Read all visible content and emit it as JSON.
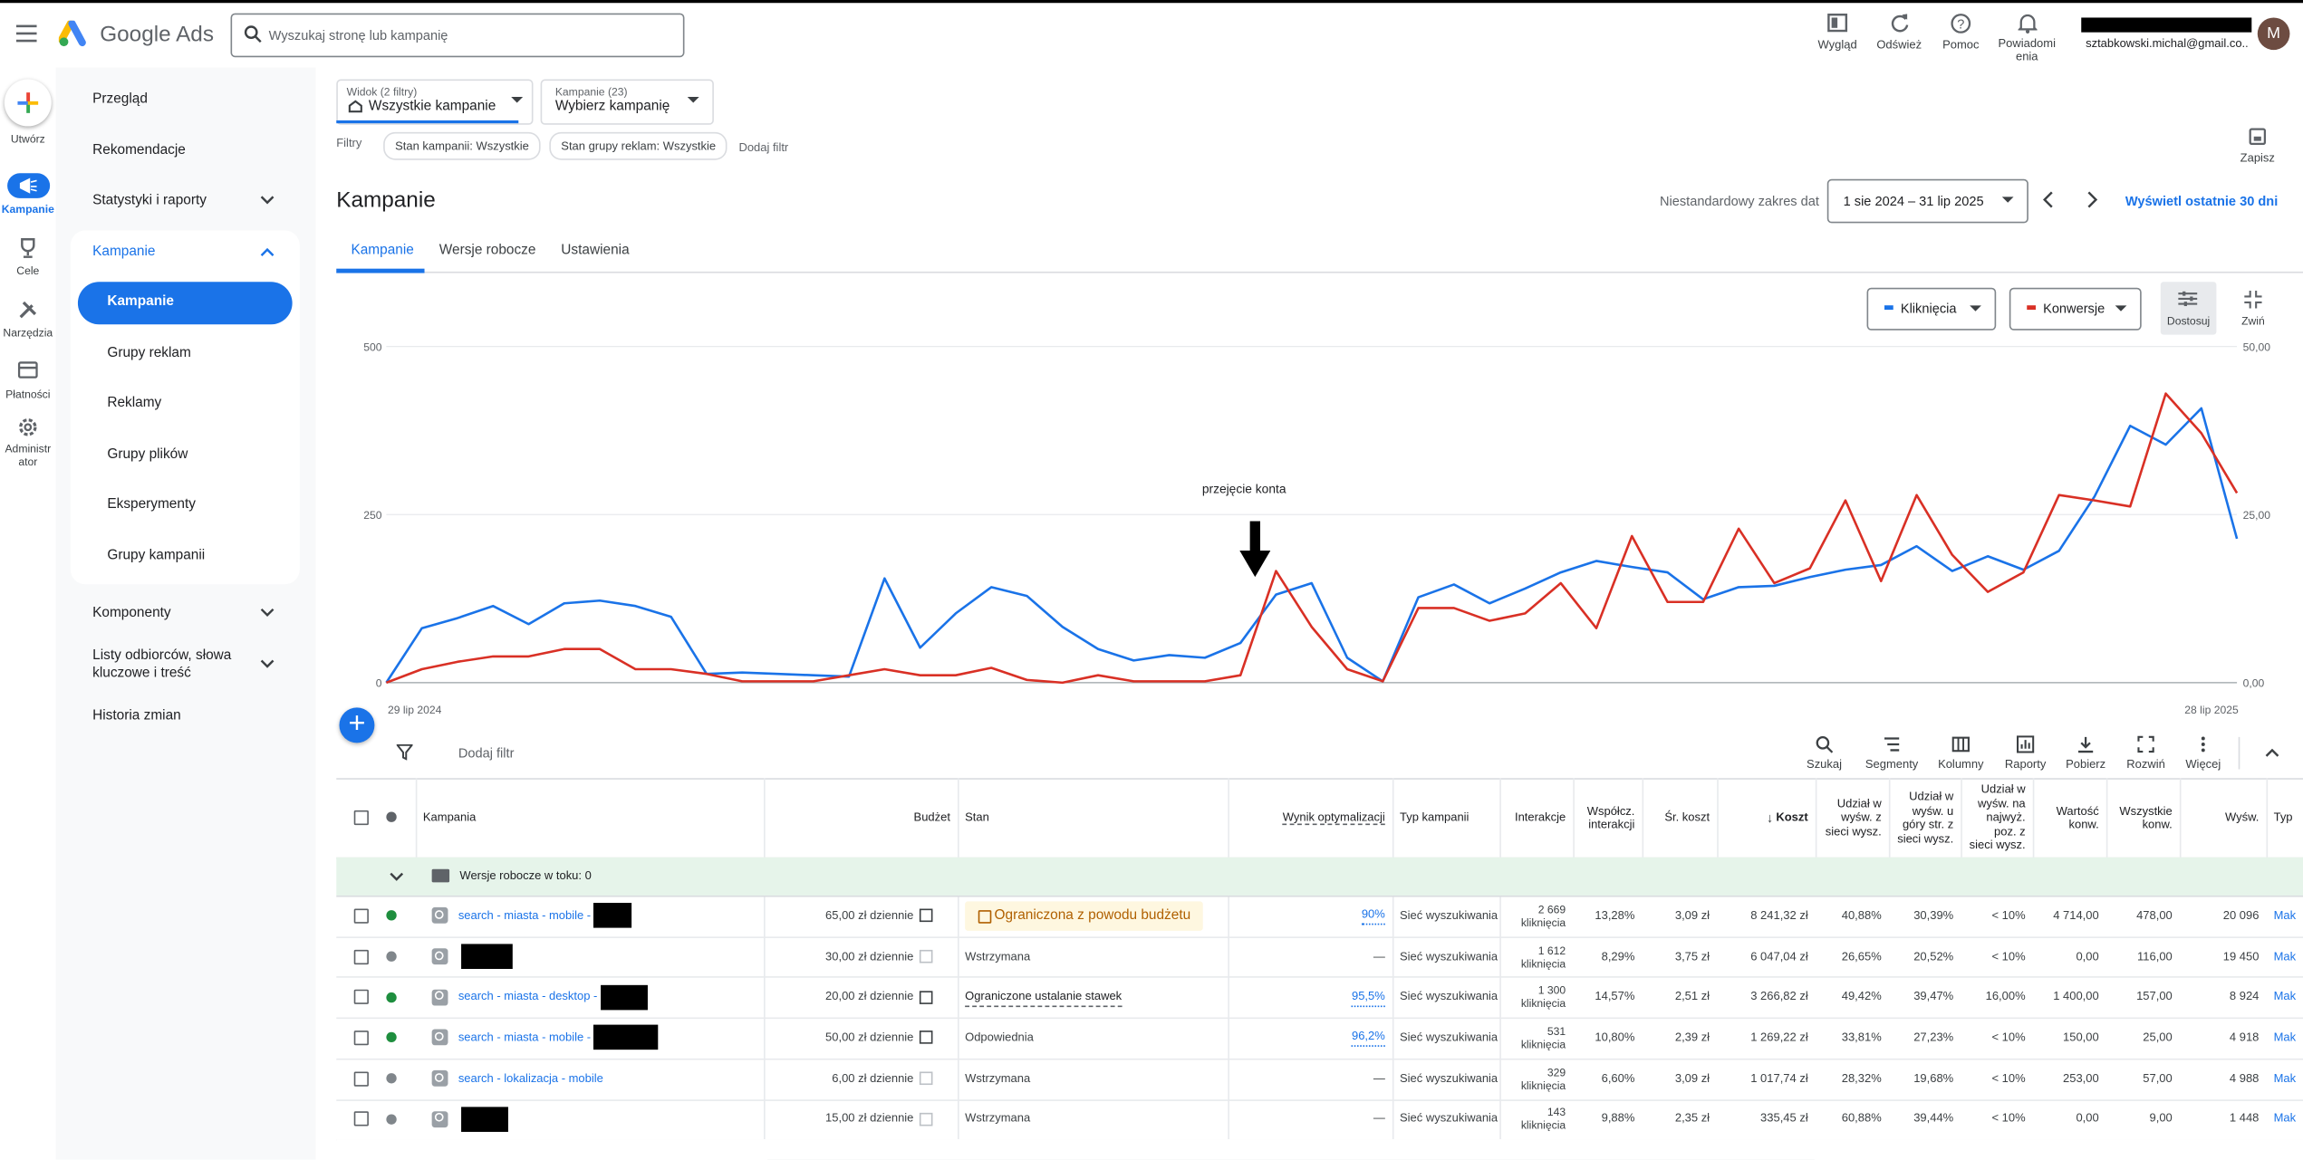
{
  "header": {
    "product": "Google Ads",
    "search_placeholder": "Wyszukaj stronę lub kampanię",
    "actions": [
      "Wygląd",
      "Odśwież",
      "Pomoc",
      "Powiadomienia"
    ],
    "account_email": "sztabkowski.michal@gmail.co...",
    "avatar": "M"
  },
  "rail": [
    "Utwórz",
    "Kampanie",
    "Cele",
    "Narzędzia",
    "Płatności",
    "Administrator"
  ],
  "nav": {
    "top": [
      "Przegląd",
      "Rekomendacje",
      "Statystyki i raporty"
    ],
    "group": "Kampanie",
    "sub": [
      "Kampanie",
      "Grupy reklam",
      "Reklamy",
      "Grupy plików",
      "Eksperymenty",
      "Grupy kampanii"
    ],
    "bottom": [
      "Komponenty",
      "Listy odbiorców, słowa kluczowe i treść",
      "Historia zmian"
    ]
  },
  "view": {
    "label": "Widok (2 filtry)",
    "value": "Wszystkie kampanie"
  },
  "campaign_picker": {
    "label": "Kampanie (23)",
    "value": "Wybierz kampanię"
  },
  "filters": {
    "label": "Filtry",
    "chips": [
      "Stan kampanii: Wszystkie",
      "Stan grupy reklam: Wszystkie"
    ],
    "add": "Dodaj filtr"
  },
  "save": "Zapisz",
  "page_title": "Kampanie",
  "date": {
    "label": "Niestandardowy zakres dat",
    "range": "1 sie 2024 – 31 lip 2025",
    "link": "Wyświetl ostatnie 30 dni"
  },
  "tabs": [
    "Kampanie",
    "Wersje robocze",
    "Ustawienia"
  ],
  "chart_controls": {
    "adjust": "Dostosuj",
    "collapse": "Zwiń"
  },
  "chart_data": {
    "type": "line",
    "annotation": "przejęcie konta",
    "categories": [
      "29 lip 2024",
      null,
      null,
      null,
      null,
      null,
      null,
      null,
      null,
      null,
      null,
      null,
      null,
      null,
      null,
      null,
      null,
      null,
      null,
      null,
      null,
      null,
      null,
      null,
      null,
      null,
      null,
      null,
      null,
      null,
      null,
      null,
      null,
      null,
      null,
      null,
      null,
      null,
      null,
      null,
      null,
      null,
      null,
      null,
      null,
      null,
      null,
      null,
      null,
      null,
      null,
      null,
      "28 lip 2025"
    ],
    "ylim": [
      0,
      500
    ],
    "yticks": [
      0,
      250,
      500
    ],
    "y2lim": [
      0,
      50
    ],
    "y2ticks": [
      {
        "value": 0,
        "label": "0,00"
      },
      {
        "value": 25,
        "label": "25,00"
      },
      {
        "value": 50,
        "label": "50,00"
      }
    ],
    "grid": true,
    "series": [
      {
        "name": "Kliknięcia",
        "color": "#1a73e8",
        "values": [
          0,
          81,
          96,
          114,
          87,
          118,
          122,
          114,
          98,
          13,
          15,
          13,
          11,
          9,
          155,
          52,
          103,
          142,
          129,
          83,
          50,
          33,
          41,
          37,
          59,
          131,
          148,
          37,
          2,
          127,
          146,
          118,
          140,
          164,
          181,
          172,
          164,
          124,
          142,
          144,
          157,
          168,
          175,
          203,
          166,
          188,
          168,
          196,
          277,
          382,
          354,
          408,
          214
        ]
      },
      {
        "name": "Konwersje",
        "color": "#d93025",
        "axis": "y2",
        "values": [
          0,
          2,
          3.1,
          3.9,
          3.9,
          5,
          5,
          2,
          2,
          1.3,
          0.2,
          0.2,
          0.2,
          1.1,
          2,
          1.1,
          1.1,
          2.2,
          0.4,
          0,
          1.1,
          0.2,
          0.2,
          0.2,
          1.1,
          16.6,
          8.3,
          2,
          0.2,
          11.1,
          11.1,
          9.2,
          10.3,
          14.8,
          8.1,
          21.8,
          12,
          12,
          22.9,
          14.8,
          17,
          27.1,
          15.1,
          27.9,
          19,
          13.5,
          16.4,
          27.9,
          27.1,
          26.2,
          43,
          37.1,
          28.2
        ]
      }
    ]
  },
  "table_toolbar": {
    "add_filter": "Dodaj filtr",
    "tools": [
      "Szukaj",
      "Segmenty",
      "Kolumny",
      "Raporty",
      "Pobierz",
      "Rozwiń",
      "Więcej"
    ]
  },
  "table": {
    "columns": [
      "Kampania",
      "Budżet",
      "Stan",
      "Wynik optymalizacji",
      "Typ kampanii",
      "Interakcje",
      "Współcz. interakcji",
      "Śr. koszt",
      "Koszt",
      "Udział w wyśw. z sieci wysz.",
      "Udział w wyśw. u góry str. z sieci wysz.",
      "Udział w wyśw. na najwyż. poz. z sieci wysz.",
      "Wartość konw.",
      "Wszystkie konw.",
      "Wyśw.",
      "Typ"
    ],
    "draft_row": "Wersje robocze w toku: 0",
    "rows": [
      {
        "dot": "#1e8e3e",
        "name": "search - miasta - mobile -",
        "budget": "65,00 zł dziennie",
        "status": "Ograniczona z powodu budżetu",
        "status_style": "warning",
        "score": "90%",
        "type": "Sieć wyszukiwania",
        "interactions": "2 669",
        "interactions_unit": "kliknięcia",
        "rate": "13,28%",
        "avg_cost": "3,09 zł",
        "cost": "8 241,32 zł",
        "is": "40,88%",
        "top_is": "30,39%",
        "abs_top_is": "< 10%",
        "conv_value": "4 714,00",
        "conversions": "478,00",
        "impressions": "20 096",
        "bidding": "Mak"
      },
      {
        "dot": "#80868b",
        "name": null,
        "budget": "30,00 zł dziennie",
        "status": "Wstrzymana",
        "status_style": "plain",
        "score": "—",
        "type": "Sieć wyszukiwania",
        "interactions": "1 612",
        "interactions_unit": "kliknięcia",
        "rate": "8,29%",
        "avg_cost": "3,75 zł",
        "cost": "6 047,04 zł",
        "is": "26,65%",
        "top_is": "20,52%",
        "abs_top_is": "< 10%",
        "conv_value": "0,00",
        "conversions": "116,00",
        "impressions": "19 450",
        "bidding": "Mak"
      },
      {
        "dot": "#1e8e3e",
        "name": "search - miasta - desktop -",
        "budget": "20,00 zł dziennie",
        "status": "Ograniczone ustalanie stawek",
        "status_style": "underline",
        "score": "95,5%",
        "type": "Sieć wyszukiwania",
        "interactions": "1 300",
        "interactions_unit": "kliknięcia",
        "rate": "14,57%",
        "avg_cost": "2,51 zł",
        "cost": "3 266,82 zł",
        "is": "49,42%",
        "top_is": "39,47%",
        "abs_top_is": "16,00%",
        "conv_value": "1 400,00",
        "conversions": "157,00",
        "impressions": "8 924",
        "bidding": "Mak"
      },
      {
        "dot": "#1e8e3e",
        "name": "search - miasta - mobile -",
        "budget": "50,00 zł dziennie",
        "status": "Odpowiednia",
        "status_style": "plain",
        "score": "96,2%",
        "type": "Sieć wyszukiwania",
        "interactions": "531",
        "interactions_unit": "kliknięcia",
        "rate": "10,80%",
        "avg_cost": "2,39 zł",
        "cost": "1 269,22 zł",
        "is": "33,81%",
        "top_is": "27,23%",
        "abs_top_is": "< 10%",
        "conv_value": "150,00",
        "conversions": "25,00",
        "impressions": "4 918",
        "bidding": "Mak"
      },
      {
        "dot": "#80868b",
        "name": "search - lokalizacja - mobile",
        "budget": "6,00 zł dziennie",
        "status": "Wstrzymana",
        "status_style": "plain",
        "score": "—",
        "type": "Sieć wyszukiwania",
        "interactions": "329",
        "interactions_unit": "kliknięcia",
        "rate": "6,60%",
        "avg_cost": "3,09 zł",
        "cost": "1 017,74 zł",
        "is": "28,32%",
        "top_is": "19,68%",
        "abs_top_is": "< 10%",
        "conv_value": "253,00",
        "conversions": "57,00",
        "impressions": "4 988",
        "bidding": "Mak"
      },
      {
        "dot": "#80868b",
        "name": null,
        "budget": "15,00 zł dziennie",
        "status": "Wstrzymana",
        "status_style": "plain",
        "score": "—",
        "type": "Sieć wyszukiwania",
        "interactions": "143",
        "interactions_unit": "kliknięcia",
        "rate": "9,88%",
        "avg_cost": "2,35 zł",
        "cost": "335,45 zł",
        "is": "60,88%",
        "top_is": "39,44%",
        "abs_top_is": "< 10%",
        "conv_value": "0,00",
        "conversions": "9,00",
        "impressions": "1 448",
        "bidding": "Mak"
      }
    ]
  }
}
